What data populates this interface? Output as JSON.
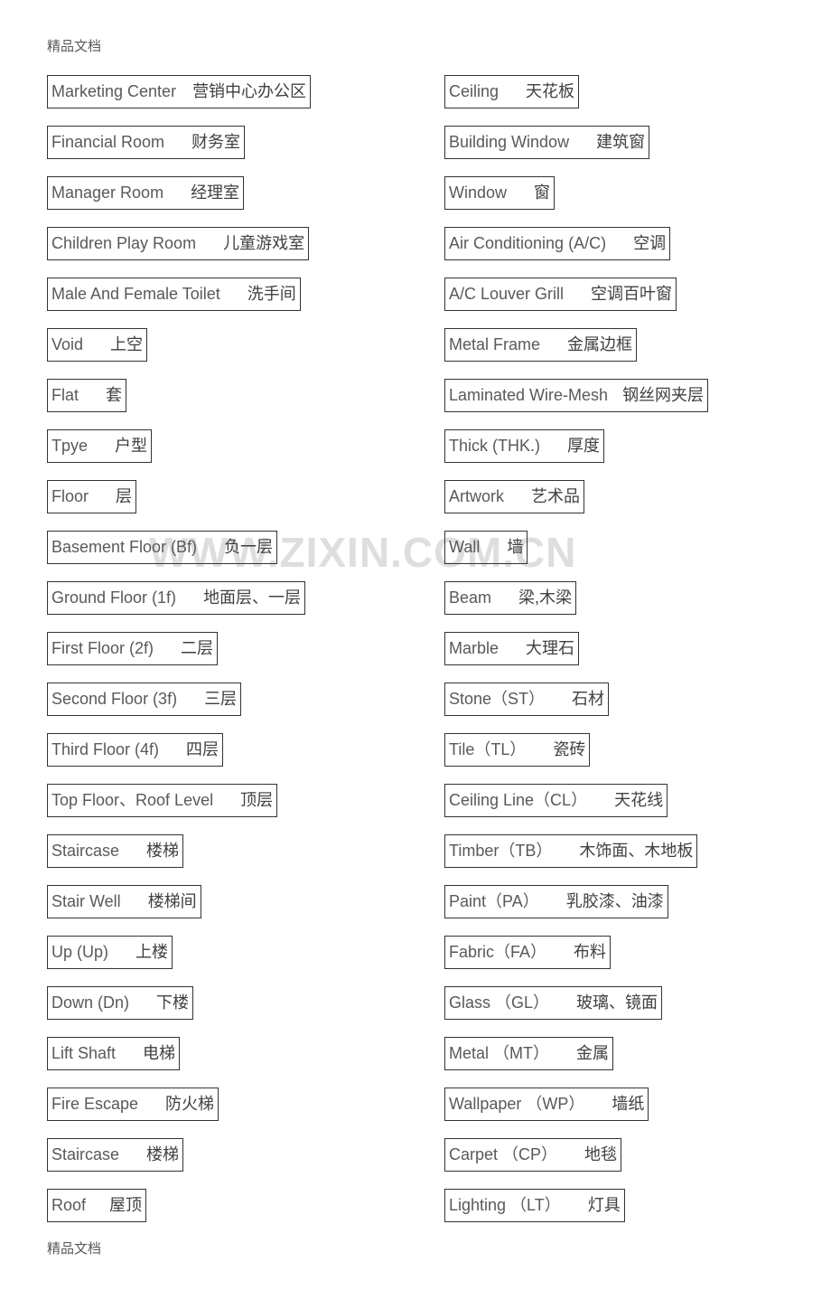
{
  "header_text": "精品文档",
  "footer_text": "精品文档",
  "watermark_text": "WWW.ZIXIN.COM.CN",
  "left": [
    {
      "en": "Marketing Center",
      "sep": 18,
      "zh": "营销中心办公区"
    },
    {
      "en": "Financial Room",
      "sep": 30,
      "zh": "财务室"
    },
    {
      "en": "Manager Room",
      "sep": 30,
      "zh": "经理室"
    },
    {
      "en": "Children Play Room",
      "sep": 30,
      "zh": "儿童游戏室"
    },
    {
      "en": "Male And Female Toilet",
      "sep": 30,
      "zh": "洗手间"
    },
    {
      "en": "Void",
      "sep": 30,
      "zh": "上空"
    },
    {
      "en": "Flat",
      "sep": 30,
      "zh": "套"
    },
    {
      "en": "Tpye",
      "sep": 30,
      "zh": "户型"
    },
    {
      "en": "Floor",
      "sep": 30,
      "zh": "层"
    },
    {
      "en": "Basement Floor (Bf)",
      "sep": 30,
      "zh": "负一层"
    },
    {
      "en": "Ground Floor (1f)",
      "sep": 30,
      "zh": "地面层、一层"
    },
    {
      "en": "First Floor (2f)",
      "sep": 30,
      "zh": "二层"
    },
    {
      "en": "Second Floor (3f)",
      "sep": 30,
      "zh": "三层"
    },
    {
      "en": "Third Floor (4f)",
      "sep": 30,
      "zh": "四层"
    },
    {
      "en": "Top Floor、Roof Level",
      "sep": 30,
      "zh": "顶层"
    },
    {
      "en": "Staircase",
      "sep": 30,
      "zh": "楼梯"
    },
    {
      "en": "Stair Well",
      "sep": 30,
      "zh": "楼梯间"
    },
    {
      "en": "Up (Up)",
      "sep": 30,
      "zh": "上楼"
    },
    {
      "en": "Down (Dn)",
      "sep": 30,
      "zh": "下楼"
    },
    {
      "en": "Lift Shaft",
      "sep": 30,
      "zh": "电梯"
    },
    {
      "en": "Fire Escape",
      "sep": 30,
      "zh": "防火梯"
    },
    {
      "en": "Staircase",
      "sep": 30,
      "zh": "楼梯"
    },
    {
      "en": "Roof",
      "sep": 26,
      "zh": "屋顶"
    }
  ],
  "right": [
    {
      "en": "Ceiling",
      "sep": 30,
      "zh": "天花板"
    },
    {
      "en": "Building Window",
      "sep": 30,
      "zh": "建筑窗"
    },
    {
      "en": "Window",
      "sep": 30,
      "zh": "窗"
    },
    {
      "en": "Air Conditioning (A/C)",
      "sep": 30,
      "zh": "空调"
    },
    {
      "en": "A/C Louver Grill",
      "sep": 30,
      "zh": "空调百叶窗"
    },
    {
      "en": "Metal Frame",
      "sep": 30,
      "zh": "金属边框"
    },
    {
      "en": "Laminated Wire-Mesh",
      "sep": 16,
      "zh": "钢丝网夹层"
    },
    {
      "en": "Thick (THK.)",
      "sep": 30,
      "zh": "厚度"
    },
    {
      "en": "Artwork",
      "sep": 30,
      "zh": "艺术品"
    },
    {
      "en": "Wall",
      "sep": 30,
      "zh": "墙"
    },
    {
      "en": "Beam",
      "sep": 30,
      "zh": "梁,木梁"
    },
    {
      "en": "Marble",
      "sep": 30,
      "zh": "大理石"
    },
    {
      "en": "Stone（ST）",
      "sep": 30,
      "zh": "石材"
    },
    {
      "en": "Tile（TL）",
      "sep": 30,
      "zh": "瓷砖"
    },
    {
      "en": "Ceiling Line（CL）",
      "sep": 30,
      "zh": "天花线"
    },
    {
      "en": "Timber（TB）",
      "sep": 30,
      "zh": "木饰面、木地板"
    },
    {
      "en": "Paint（PA）",
      "sep": 30,
      "zh": "乳胶漆、油漆"
    },
    {
      "en": "Fabric（FA）",
      "sep": 30,
      "zh": "布料"
    },
    {
      "en": "Glass （GL）",
      "sep": 30,
      "zh": "玻璃、镜面"
    },
    {
      "en": "Metal （MT）",
      "sep": 30,
      "zh": "金属"
    },
    {
      "en": "Wallpaper （WP）",
      "sep": 30,
      "zh": "墙纸"
    },
    {
      "en": "Carpet （CP）",
      "sep": 30,
      "zh": "地毯"
    },
    {
      "en": "Lighting （LT）",
      "sep": 30,
      "zh": "灯具"
    }
  ]
}
